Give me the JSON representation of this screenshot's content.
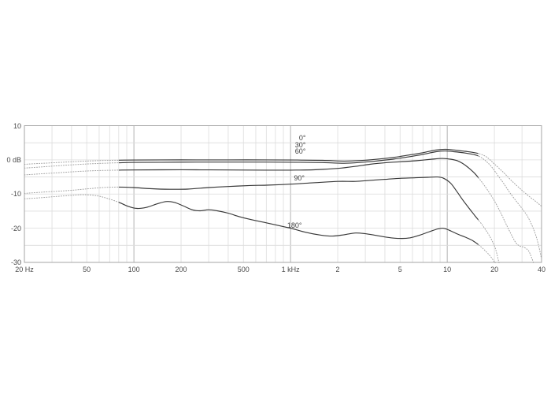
{
  "chart_data": {
    "type": "line",
    "title": "",
    "description": "Off-axis frequency response chart: level in dB versus frequency, curves for 0, 30, 60, 90 and 180 degrees",
    "grid": true,
    "legend_position": "inline-labels",
    "x_axis": {
      "scale": "log",
      "min_hz": 20,
      "max_hz": 40000,
      "major_gridlines_hz": [
        100,
        1000,
        10000
      ],
      "ticks": [
        {
          "f": 20,
          "label": "20 Hz"
        },
        {
          "f": 50,
          "label": "50"
        },
        {
          "f": 100,
          "label": "100"
        },
        {
          "f": 200,
          "label": "200"
        },
        {
          "f": 500,
          "label": "500"
        },
        {
          "f": 1000,
          "label": "1 kHz"
        },
        {
          "f": 2000,
          "label": "2"
        },
        {
          "f": 5000,
          "label": "5"
        },
        {
          "f": 10000,
          "label": "10"
        },
        {
          "f": 20000,
          "label": "20"
        },
        {
          "f": 40000,
          "label": "40"
        }
      ]
    },
    "y_axis": {
      "unit": "dB",
      "min": -30,
      "max": 10,
      "minor_step": 5,
      "ticks": [
        {
          "db": 10,
          "label": "10"
        },
        {
          "db": 0,
          "label": "0 dB"
        },
        {
          "db": -10,
          "label": "-10"
        },
        {
          "db": -20,
          "label": "-20"
        },
        {
          "db": -30,
          "label": "-30"
        }
      ]
    },
    "line_style": {
      "solid_range_hz": [
        80,
        15800
      ],
      "dotted_outside_range": true
    },
    "colors": {
      "curve_solid": "#383838",
      "curve_dotted": "#a3a3a3",
      "grid_minor": "#dcdcdc",
      "grid_major": "#b3b3b3",
      "border": "#a6a6a6",
      "text": "#4a4a4a"
    },
    "series": [
      {
        "name": "0-degrees",
        "label": "0°",
        "label_at": {
          "f": 1250,
          "db": 6.1
        },
        "points": [
          [
            20,
            -1.3
          ],
          [
            25,
            -1.05
          ],
          [
            32,
            -0.8
          ],
          [
            40,
            -0.55
          ],
          [
            50,
            -0.35
          ],
          [
            63,
            -0.2
          ],
          [
            80,
            -0.1
          ],
          [
            100,
            -0.05
          ],
          [
            150,
            0
          ],
          [
            250,
            0
          ],
          [
            400,
            0
          ],
          [
            700,
            0
          ],
          [
            1100,
            -0.05
          ],
          [
            1600,
            -0.15
          ],
          [
            2200,
            -0.35
          ],
          [
            2800,
            -0.2
          ],
          [
            3500,
            0.15
          ],
          [
            4500,
            0.7
          ],
          [
            5500,
            1.3
          ],
          [
            7000,
            2.1
          ],
          [
            8500,
            2.9
          ],
          [
            9700,
            3.1
          ],
          [
            11000,
            2.9
          ],
          [
            13000,
            2.5
          ],
          [
            15000,
            2.1
          ],
          [
            16500,
            1.6
          ],
          [
            18000,
            0.7
          ],
          [
            20000,
            -1.2
          ],
          [
            23000,
            -3.8
          ],
          [
            26000,
            -6.3
          ],
          [
            30000,
            -8.9
          ],
          [
            34000,
            -11
          ],
          [
            37000,
            -12.3
          ],
          [
            40000,
            -13.6
          ]
        ]
      },
      {
        "name": "30-degrees",
        "label": "30°",
        "label_at": {
          "f": 1250,
          "db": 4.2
        },
        "points": [
          [
            20,
            -2.4
          ],
          [
            25,
            -2.1
          ],
          [
            32,
            -1.75
          ],
          [
            40,
            -1.45
          ],
          [
            50,
            -1.2
          ],
          [
            63,
            -1.0
          ],
          [
            80,
            -0.85
          ],
          [
            100,
            -0.75
          ],
          [
            150,
            -0.7
          ],
          [
            250,
            -0.65
          ],
          [
            400,
            -0.65
          ],
          [
            700,
            -0.65
          ],
          [
            1100,
            -0.7
          ],
          [
            1600,
            -0.8
          ],
          [
            2200,
            -1.0
          ],
          [
            2800,
            -0.75
          ],
          [
            3500,
            -0.35
          ],
          [
            4500,
            0.2
          ],
          [
            5500,
            0.8
          ],
          [
            7000,
            1.6
          ],
          [
            8500,
            2.4
          ],
          [
            9700,
            2.6
          ],
          [
            11000,
            2.4
          ],
          [
            13000,
            2.0
          ],
          [
            15000,
            1.5
          ],
          [
            16200,
            0.9
          ],
          [
            17500,
            -0.2
          ],
          [
            19000,
            -1.8
          ],
          [
            21000,
            -4.5
          ],
          [
            23000,
            -7
          ],
          [
            25000,
            -9.5
          ],
          [
            27500,
            -12
          ],
          [
            30000,
            -14.2
          ],
          [
            32500,
            -16.5
          ],
          [
            35000,
            -19.5
          ],
          [
            37000,
            -22.5
          ],
          [
            38500,
            -25.5
          ],
          [
            40000,
            -29
          ]
        ]
      },
      {
        "name": "60-degrees",
        "label": "60°",
        "label_at": {
          "f": 1250,
          "db": 2.3
        },
        "points": [
          [
            20,
            -4.4
          ],
          [
            25,
            -4.1
          ],
          [
            32,
            -3.8
          ],
          [
            40,
            -3.5
          ],
          [
            50,
            -3.25
          ],
          [
            63,
            -3.1
          ],
          [
            80,
            -3.0
          ],
          [
            100,
            -2.95
          ],
          [
            150,
            -2.9
          ],
          [
            250,
            -2.9
          ],
          [
            400,
            -2.95
          ],
          [
            700,
            -3.0
          ],
          [
            1000,
            -3.0
          ],
          [
            1400,
            -2.9
          ],
          [
            2000,
            -2.5
          ],
          [
            2600,
            -1.9
          ],
          [
            3200,
            -1.3
          ],
          [
            4000,
            -0.85
          ],
          [
            5000,
            -0.55
          ],
          [
            6300,
            -0.25
          ],
          [
            8000,
            0.2
          ],
          [
            9300,
            0.4
          ],
          [
            10500,
            0.2
          ],
          [
            11500,
            -0.2
          ],
          [
            12500,
            -1.0
          ],
          [
            13500,
            -2.1
          ],
          [
            15000,
            -4.0
          ],
          [
            16500,
            -6.3
          ],
          [
            18000,
            -8.7
          ],
          [
            20000,
            -12
          ],
          [
            22000,
            -15.6
          ],
          [
            24000,
            -19.2
          ],
          [
            26000,
            -22.4
          ],
          [
            27500,
            -24.3
          ],
          [
            29000,
            -25.2
          ],
          [
            31000,
            -25.6
          ],
          [
            33000,
            -26.6
          ],
          [
            34500,
            -28.5
          ],
          [
            35800,
            -30.6
          ]
        ]
      },
      {
        "name": "90-degrees",
        "label": "90°",
        "label_at": {
          "f": 1230,
          "db": -5.6
        },
        "points": [
          [
            20,
            -9.8
          ],
          [
            25,
            -9.5
          ],
          [
            32,
            -9.2
          ],
          [
            40,
            -8.9
          ],
          [
            50,
            -8.5
          ],
          [
            63,
            -8.1
          ],
          [
            80,
            -7.95
          ],
          [
            100,
            -8.1
          ],
          [
            130,
            -8.45
          ],
          [
            170,
            -8.6
          ],
          [
            220,
            -8.55
          ],
          [
            300,
            -8.1
          ],
          [
            400,
            -7.8
          ],
          [
            550,
            -7.5
          ],
          [
            700,
            -7.4
          ],
          [
            1000,
            -7.1
          ],
          [
            1400,
            -6.7
          ],
          [
            2000,
            -6.3
          ],
          [
            2600,
            -6.3
          ],
          [
            3200,
            -6.0
          ],
          [
            4000,
            -5.7
          ],
          [
            5000,
            -5.4
          ],
          [
            6300,
            -5.25
          ],
          [
            7500,
            -5.1
          ],
          [
            8700,
            -5.0
          ],
          [
            9500,
            -5.4
          ],
          [
            10500,
            -6.8
          ],
          [
            11500,
            -9.2
          ],
          [
            12500,
            -11.6
          ],
          [
            13700,
            -14
          ],
          [
            15000,
            -16.3
          ],
          [
            16200,
            -18.2
          ],
          [
            17500,
            -20.3
          ],
          [
            19000,
            -23
          ],
          [
            20300,
            -26
          ],
          [
            21500,
            -30.5
          ]
        ]
      },
      {
        "name": "180-degrees",
        "label": "180°",
        "label_at": {
          "f": 1180,
          "db": -19.3
        },
        "points": [
          [
            20,
            -11.4
          ],
          [
            25,
            -11.1
          ],
          [
            32,
            -10.7
          ],
          [
            40,
            -10.4
          ],
          [
            48,
            -10.2
          ],
          [
            58,
            -10.5
          ],
          [
            68,
            -11.3
          ],
          [
            80,
            -12.4
          ],
          [
            92,
            -13.6
          ],
          [
            105,
            -14.2
          ],
          [
            120,
            -13.9
          ],
          [
            140,
            -12.9
          ],
          [
            160,
            -12.2
          ],
          [
            180,
            -12.4
          ],
          [
            205,
            -13.4
          ],
          [
            235,
            -14.6
          ],
          [
            265,
            -14.9
          ],
          [
            300,
            -14.6
          ],
          [
            340,
            -14.9
          ],
          [
            400,
            -15.6
          ],
          [
            470,
            -16.6
          ],
          [
            550,
            -17.4
          ],
          [
            650,
            -18.1
          ],
          [
            800,
            -19.0
          ],
          [
            1000,
            -20.0
          ],
          [
            1250,
            -21.2
          ],
          [
            1550,
            -22.0
          ],
          [
            1850,
            -22.3
          ],
          [
            2200,
            -21.9
          ],
          [
            2600,
            -21.4
          ],
          [
            3000,
            -21.6
          ],
          [
            3500,
            -22.1
          ],
          [
            4200,
            -22.7
          ],
          [
            5000,
            -23.0
          ],
          [
            5800,
            -22.8
          ],
          [
            6700,
            -22.0
          ],
          [
            7700,
            -21.0
          ],
          [
            8700,
            -20.2
          ],
          [
            9400,
            -20.0
          ],
          [
            10200,
            -20.5
          ],
          [
            11500,
            -21.6
          ],
          [
            13000,
            -22.6
          ],
          [
            14500,
            -23.6
          ],
          [
            16000,
            -25.0
          ],
          [
            17500,
            -26.6
          ],
          [
            19000,
            -28.4
          ],
          [
            20500,
            -30.6
          ]
        ]
      }
    ]
  }
}
